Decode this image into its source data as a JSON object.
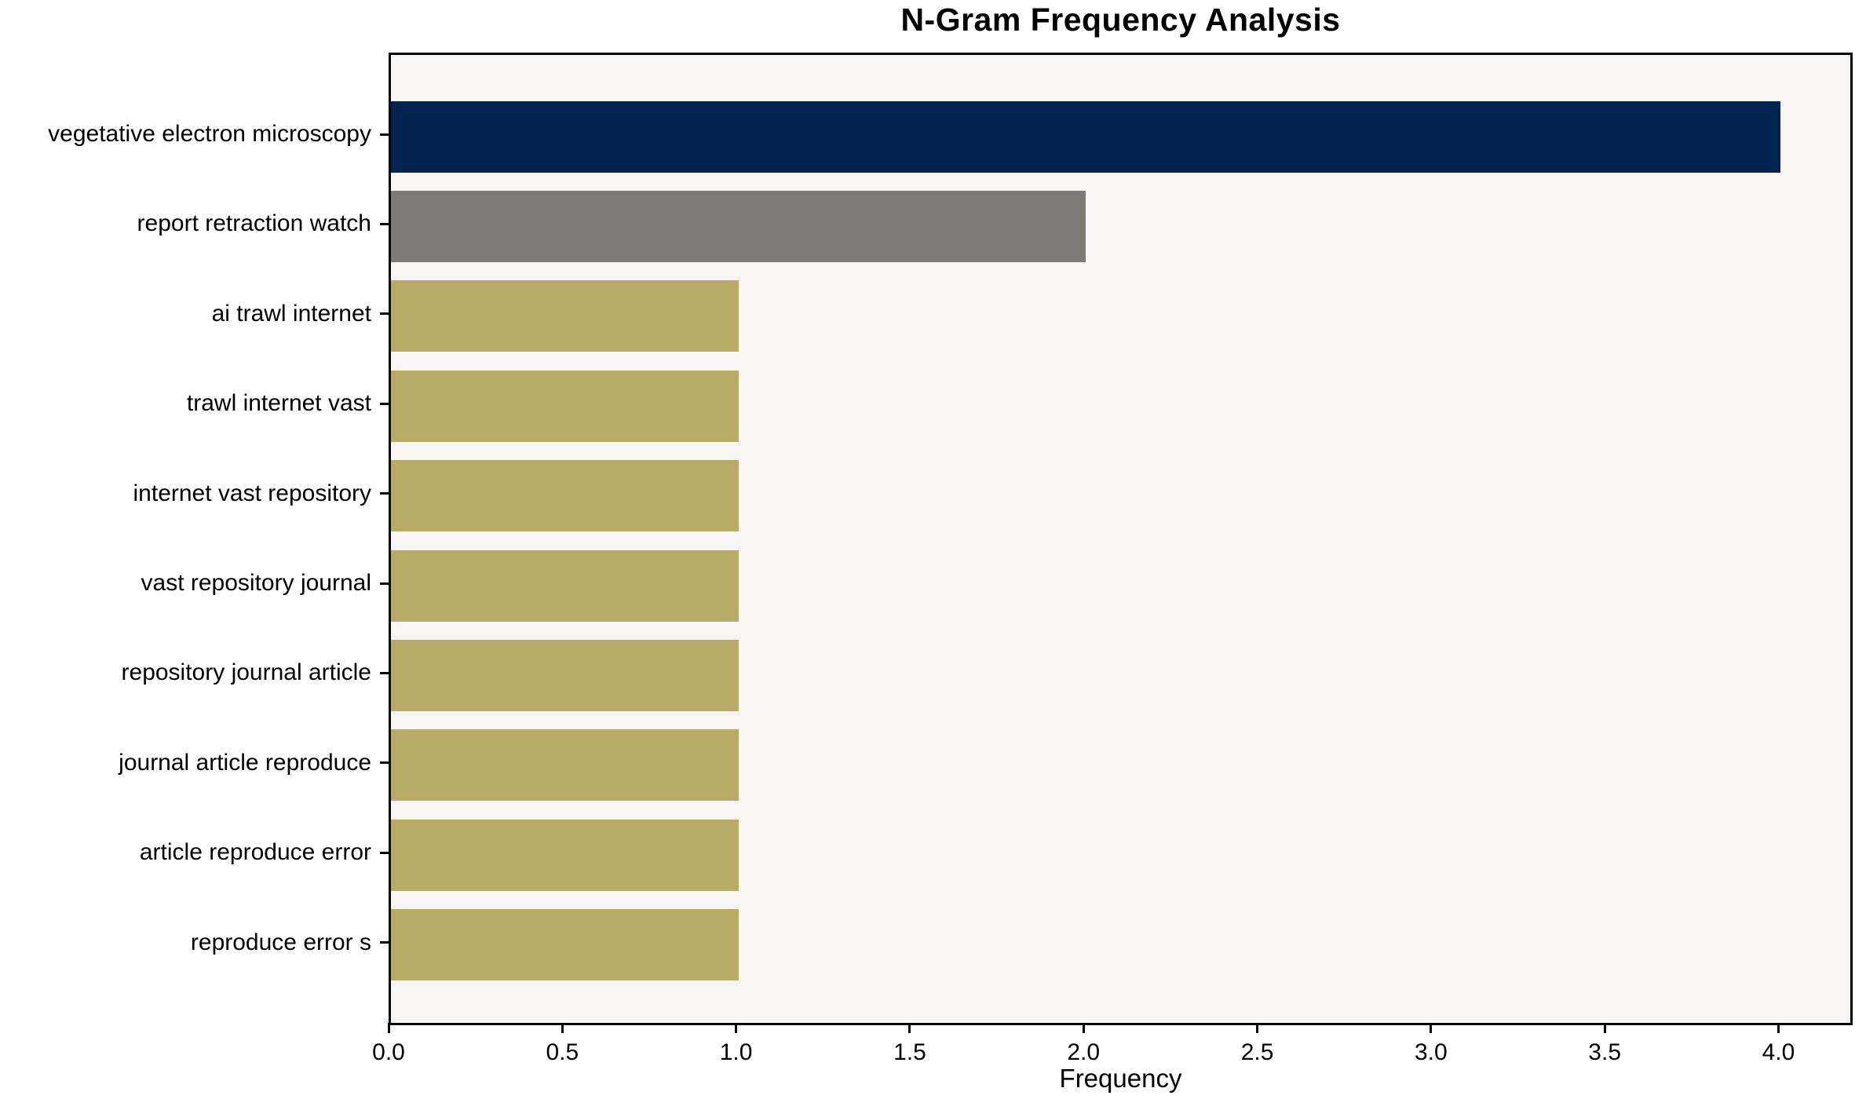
{
  "chart_data": {
    "type": "bar",
    "orientation": "horizontal",
    "title": "N-Gram Frequency Analysis",
    "xlabel": "Frequency",
    "ylabel": "",
    "categories": [
      "vegetative electron microscopy",
      "report retraction watch",
      "ai trawl internet",
      "trawl internet vast",
      "internet vast repository",
      "vast repository journal",
      "repository journal article",
      "journal article reproduce",
      "article reproduce error",
      "reproduce error s"
    ],
    "values": [
      4,
      2,
      1,
      1,
      1,
      1,
      1,
      1,
      1,
      1
    ],
    "bar_colors": [
      "#02234f",
      "#7c7b77",
      "#b8aa67",
      "#b8aa67",
      "#b8aa67",
      "#b8aa67",
      "#b8aa67",
      "#b8aa67",
      "#b8aa67",
      "#b8aa67"
    ],
    "x_tick_labels": [
      "0.0",
      "0.5",
      "1.0",
      "1.5",
      "2.0",
      "2.5",
      "3.0",
      "3.5",
      "4.0"
    ],
    "x_tick_values": [
      0,
      0.5,
      1,
      1.5,
      2,
      2.5,
      3,
      3.5,
      4
    ],
    "xlim": [
      0,
      4.2
    ],
    "grid": false,
    "legend": false,
    "plot_bg_color": "#f7f6f5",
    "frame_color": "#000000",
    "text_color": "#000000"
  }
}
